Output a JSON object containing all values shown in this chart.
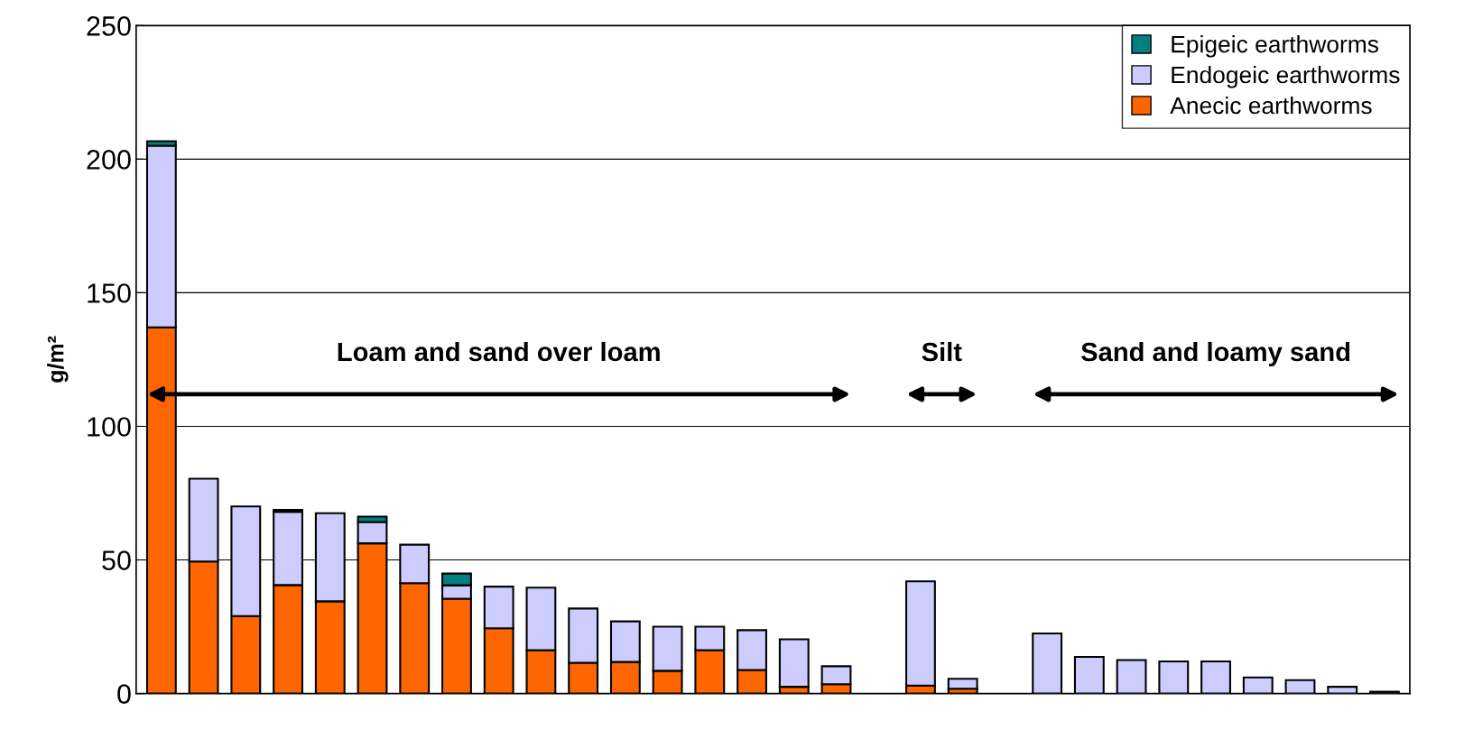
{
  "chart_data": {
    "type": "bar",
    "stacked": true,
    "ylabel": "g/m²",
    "categories": [
      null,
      null,
      null,
      null,
      null,
      null,
      null,
      null,
      null,
      null,
      null,
      null,
      null,
      null,
      null,
      null,
      null,
      null,
      null,
      null,
      null,
      null,
      null,
      null,
      null,
      null,
      null,
      null,
      null,
      null
    ],
    "series": [
      {
        "name": "Anecic earthworms",
        "color": "#ff6600",
        "values": [
          137,
          49.4,
          29,
          40.6,
          34.5,
          56.2,
          41.3,
          35.5,
          24.4,
          16.2,
          11.5,
          11.8,
          8.5,
          16.2,
          8.8,
          2.5,
          3.5,
          null,
          3,
          1.8,
          null,
          0,
          0,
          0,
          0,
          0,
          0,
          0,
          0,
          0
        ]
      },
      {
        "name": "Endogeic earthworms",
        "color": "#ccccff",
        "values": [
          68,
          31,
          41,
          27.4,
          33,
          8,
          14.4,
          5,
          15.6,
          23.4,
          20.3,
          15.2,
          16.5,
          8.8,
          14.9,
          17.8,
          6.7,
          null,
          39,
          3.7,
          null,
          22.5,
          13.7,
          12.5,
          12,
          12,
          6,
          5,
          2.5,
          0.7
        ]
      },
      {
        "name": "Epigeic earthworms",
        "color": "#008080",
        "values": [
          1.7,
          0,
          0,
          0.7,
          0,
          2,
          0,
          4.4,
          0,
          0,
          0,
          0,
          0,
          0,
          0,
          0,
          0,
          null,
          0,
          0,
          null,
          0,
          0,
          0,
          0,
          0,
          0,
          0,
          0,
          0
        ]
      }
    ],
    "ylim": [
      0,
      250
    ],
    "yticks": [
      0,
      50,
      100,
      150,
      200,
      250
    ],
    "grid": "y",
    "legend": "top right",
    "tick_labels": "y",
    "annotations": [
      "Loam and sand over loam",
      "Silt",
      "Sand and loamy sand"
    ]
  }
}
